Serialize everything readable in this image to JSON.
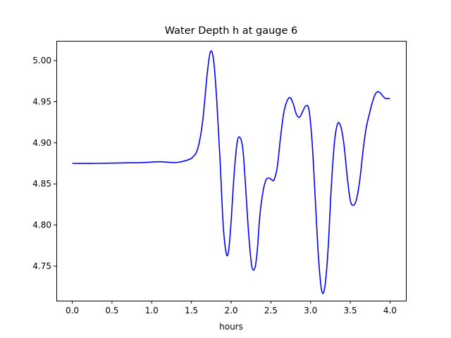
{
  "chart_data": {
    "type": "line",
    "title": "Water Depth h at gauge 6",
    "xlabel": "hours",
    "ylabel": "",
    "xlim": [
      -0.2,
      4.2
    ],
    "ylim": [
      4.708,
      5.024
    ],
    "x_ticks": [
      0.0,
      0.5,
      1.0,
      1.5,
      2.0,
      2.5,
      3.0,
      3.5,
      4.0
    ],
    "x_tick_labels": [
      "0.0",
      "0.5",
      "1.0",
      "1.5",
      "2.0",
      "2.5",
      "3.0",
      "3.5",
      "4.0"
    ],
    "y_ticks": [
      4.75,
      4.8,
      4.85,
      4.9,
      4.95,
      5.0
    ],
    "y_tick_labels": [
      "4.75",
      "4.80",
      "4.85",
      "4.90",
      "4.95",
      "5.00"
    ],
    "grid": false,
    "series": [
      {
        "color": "#0000ff",
        "x": [
          0.0,
          0.3,
          0.6,
          0.9,
          1.1,
          1.3,
          1.45,
          1.52,
          1.58,
          1.64,
          1.7,
          1.74,
          1.78,
          1.82,
          1.86,
          1.9,
          1.94,
          1.97,
          2.0,
          2.04,
          2.08,
          2.12,
          2.15,
          2.18,
          2.22,
          2.26,
          2.3,
          2.33,
          2.36,
          2.4,
          2.44,
          2.48,
          2.51,
          2.54,
          2.58,
          2.62,
          2.66,
          2.7,
          2.74,
          2.78,
          2.82,
          2.86,
          2.9,
          2.94,
          2.98,
          3.02,
          3.06,
          3.1,
          3.14,
          3.18,
          3.22,
          3.26,
          3.3,
          3.34,
          3.38,
          3.42,
          3.46,
          3.5,
          3.54,
          3.58,
          3.62,
          3.66,
          3.7,
          3.74,
          3.78,
          3.82,
          3.86,
          3.9,
          3.94,
          3.97,
          4.0
        ],
        "y": [
          4.875,
          4.875,
          4.8755,
          4.876,
          4.877,
          4.876,
          4.879,
          4.883,
          4.893,
          4.925,
          4.985,
          5.011,
          5.0,
          4.95,
          4.88,
          4.8,
          4.765,
          4.77,
          4.805,
          4.865,
          4.903,
          4.905,
          4.89,
          4.85,
          4.79,
          4.75,
          4.748,
          4.77,
          4.81,
          4.84,
          4.855,
          4.857,
          4.855,
          4.855,
          4.87,
          4.905,
          4.935,
          4.95,
          4.955,
          4.948,
          4.935,
          4.931,
          4.938,
          4.945,
          4.94,
          4.9,
          4.83,
          4.76,
          4.72,
          4.725,
          4.77,
          4.845,
          4.9,
          4.923,
          4.92,
          4.898,
          4.86,
          4.83,
          4.824,
          4.832,
          4.855,
          4.89,
          4.918,
          4.935,
          4.95,
          4.96,
          4.962,
          4.958,
          4.954,
          4.954,
          4.954
        ]
      }
    ]
  }
}
